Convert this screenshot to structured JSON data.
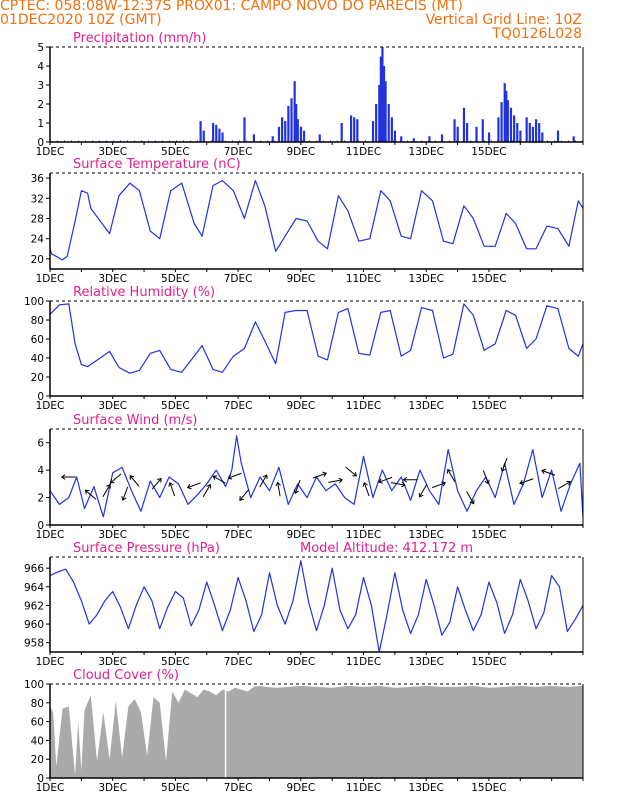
{
  "header": {
    "line1_left": "CPTEC:   058:08W-12:37S   PROX01: CAMPO NOVO DO PARECIS (MT)",
    "line2_left": "01DEC2020  10Z (GMT)",
    "line2_right": "Vertical Grid Line: 10Z",
    "line3_right": "TQ0126L028"
  },
  "colors": {
    "header": "#f07010",
    "title": "#e0208c",
    "series": "#2233dd",
    "cloud": "#aaaaaa"
  },
  "x_axis_labels": [
    "1DEC",
    "3DEC",
    "5DEC",
    "7DEC",
    "9DEC",
    "11DEC",
    "13DEC",
    "15DEC"
  ],
  "chart_data": [
    {
      "type": "bar",
      "title": "Precipitation (mm/h)",
      "ylim": [
        0,
        5
      ],
      "yticks": [
        0,
        1,
        2,
        3,
        4,
        5
      ],
      "x_unit": "days since 01DEC2020 10Z",
      "bars": [
        [
          5.8,
          1.1
        ],
        [
          5.9,
          0.6
        ],
        [
          6.2,
          1.0
        ],
        [
          6.3,
          0.9
        ],
        [
          6.4,
          0.7
        ],
        [
          6.5,
          0.5
        ],
        [
          7.2,
          1.3
        ],
        [
          7.5,
          0.4
        ],
        [
          8.1,
          0.3
        ],
        [
          8.3,
          0.8
        ],
        [
          8.4,
          1.3
        ],
        [
          8.5,
          1.1
        ],
        [
          8.6,
          1.9
        ],
        [
          8.7,
          2.3
        ],
        [
          8.8,
          3.2
        ],
        [
          8.85,
          2.0
        ],
        [
          8.9,
          1.2
        ],
        [
          9.0,
          0.8
        ],
        [
          9.1,
          0.6
        ],
        [
          9.6,
          0.4
        ],
        [
          10.3,
          1.0
        ],
        [
          10.6,
          1.4
        ],
        [
          10.7,
          1.3
        ],
        [
          10.8,
          1.2
        ],
        [
          11.3,
          1.1
        ],
        [
          11.4,
          2.0
        ],
        [
          11.5,
          3.0
        ],
        [
          11.55,
          4.5
        ],
        [
          11.6,
          5.0
        ],
        [
          11.65,
          4.0
        ],
        [
          11.7,
          3.2
        ],
        [
          11.8,
          2.0
        ],
        [
          11.9,
          1.3
        ],
        [
          12.0,
          0.6
        ],
        [
          12.2,
          0.3
        ],
        [
          12.6,
          0.2
        ],
        [
          13.1,
          0.3
        ],
        [
          13.5,
          0.4
        ],
        [
          13.9,
          1.2
        ],
        [
          14.0,
          0.8
        ],
        [
          14.2,
          1.8
        ],
        [
          14.3,
          1.0
        ],
        [
          14.6,
          0.8
        ],
        [
          14.8,
          1.2
        ],
        [
          15.0,
          0.5
        ],
        [
          15.3,
          1.3
        ],
        [
          15.4,
          2.1
        ],
        [
          15.5,
          3.1
        ],
        [
          15.55,
          2.7
        ],
        [
          15.6,
          2.2
        ],
        [
          15.7,
          1.8
        ],
        [
          15.8,
          1.4
        ],
        [
          15.9,
          1.0
        ],
        [
          16.0,
          0.6
        ],
        [
          16.2,
          1.3
        ],
        [
          16.3,
          1.0
        ],
        [
          16.4,
          0.8
        ],
        [
          16.5,
          1.2
        ],
        [
          16.6,
          1.0
        ],
        [
          16.7,
          0.5
        ],
        [
          17.2,
          0.6
        ],
        [
          17.7,
          0.3
        ]
      ]
    },
    {
      "type": "line",
      "title": "Surface Temperature (nC)",
      "ylim": [
        18,
        37
      ],
      "yticks": [
        20,
        24,
        28,
        32,
        36
      ],
      "x": [
        1.0,
        1.05,
        1.4,
        1.55,
        1.8,
        2.0,
        2.2,
        2.3,
        2.6,
        2.9,
        3.2,
        3.55,
        3.85,
        4.2,
        4.5,
        4.85,
        5.2,
        5.6,
        5.85,
        6.2,
        6.5,
        6.85,
        7.2,
        7.55,
        7.85,
        8.2,
        8.5,
        8.85,
        9.2,
        9.55,
        9.85,
        10.2,
        10.5,
        10.85,
        11.2,
        11.55,
        11.85,
        12.2,
        12.5,
        12.85,
        13.2,
        13.55,
        13.85,
        14.2,
        14.5,
        14.85,
        15.2,
        15.55,
        15.85,
        16.2,
        16.5,
        16.85,
        17.2,
        17.55,
        17.85,
        18.0
      ],
      "y": [
        22.0,
        21.0,
        19.8,
        20.5,
        27.5,
        33.5,
        33.0,
        30.0,
        27.5,
        25.0,
        32.5,
        35.0,
        33.5,
        25.5,
        24.0,
        33.5,
        35.0,
        27.0,
        24.5,
        34.5,
        35.5,
        33.5,
        28.0,
        35.5,
        30.5,
        21.5,
        24.5,
        28.0,
        27.5,
        23.5,
        22.0,
        32.5,
        29.5,
        23.5,
        24.0,
        33.5,
        31.5,
        24.5,
        24.0,
        33.5,
        31.5,
        23.5,
        23.0,
        30.5,
        28.0,
        22.5,
        22.5,
        29.0,
        27.0,
        22.0,
        22.0,
        26.5,
        26.0,
        22.5,
        31.5,
        30.0
      ]
    },
    {
      "type": "line",
      "title": "Relative Humidity (%)",
      "ylim": [
        0,
        100
      ],
      "yticks": [
        0,
        20,
        40,
        60,
        80,
        100
      ],
      "x": [
        1.0,
        1.3,
        1.6,
        1.8,
        2.0,
        2.2,
        2.6,
        2.9,
        3.2,
        3.55,
        3.85,
        4.2,
        4.5,
        4.85,
        5.2,
        5.55,
        5.85,
        6.2,
        6.5,
        6.85,
        7.2,
        7.55,
        7.85,
        8.2,
        8.5,
        8.85,
        9.2,
        9.55,
        9.85,
        10.2,
        10.5,
        10.85,
        11.2,
        11.55,
        11.85,
        12.2,
        12.5,
        12.85,
        13.2,
        13.55,
        13.85,
        14.2,
        14.5,
        14.85,
        15.2,
        15.55,
        15.85,
        16.2,
        16.5,
        16.85,
        17.2,
        17.55,
        17.85,
        18.0
      ],
      "y": [
        86,
        96,
        97,
        55,
        33,
        31,
        40,
        47,
        30,
        24,
        27,
        45,
        48,
        28,
        25,
        40,
        53,
        28,
        25,
        42,
        50,
        78,
        58,
        34,
        88,
        90,
        90,
        42,
        38,
        88,
        92,
        45,
        43,
        88,
        90,
        42,
        48,
        93,
        90,
        40,
        44,
        97,
        85,
        48,
        55,
        90,
        85,
        50,
        60,
        95,
        92,
        50,
        42,
        55
      ]
    },
    {
      "type": "line",
      "title": "Surface Wind (m/s)",
      "ylim": [
        0,
        7
      ],
      "yticks": [
        0,
        2,
        4,
        6
      ],
      "x": [
        1.0,
        1.3,
        1.6,
        1.85,
        2.1,
        2.4,
        2.7,
        3.0,
        3.3,
        3.6,
        3.9,
        4.2,
        4.5,
        4.8,
        5.1,
        5.4,
        5.7,
        6.0,
        6.3,
        6.6,
        6.8,
        6.95,
        7.1,
        7.4,
        7.7,
        8.0,
        8.3,
        8.6,
        8.9,
        9.2,
        9.5,
        9.8,
        10.1,
        10.4,
        10.7,
        11.0,
        11.3,
        11.6,
        11.9,
        12.2,
        12.5,
        12.8,
        13.1,
        13.4,
        13.7,
        14.0,
        14.3,
        14.6,
        14.9,
        15.2,
        15.5,
        15.8,
        16.1,
        16.4,
        16.7,
        17.0,
        17.3,
        17.6,
        17.9,
        18.0
      ],
      "y": [
        2.5,
        1.5,
        2.0,
        3.5,
        1.2,
        2.8,
        0.6,
        3.8,
        4.2,
        2.5,
        1.0,
        3.2,
        2.0,
        3.5,
        3.0,
        1.5,
        2.2,
        3.0,
        4.0,
        2.8,
        4.0,
        6.5,
        4.5,
        2.0,
        3.5,
        2.5,
        4.2,
        1.5,
        3.0,
        2.0,
        3.5,
        2.5,
        3.0,
        2.0,
        1.5,
        5.0,
        2.0,
        4.0,
        2.5,
        3.5,
        1.8,
        4.0,
        2.5,
        1.5,
        5.5,
        2.5,
        1.0,
        2.5,
        3.5,
        2.0,
        4.5,
        1.5,
        3.0,
        5.5,
        2.0,
        4.0,
        1.0,
        3.0,
        4.5,
        0.5
      ]
    },
    {
      "type": "line",
      "title": "Surface Pressure (hPa)",
      "annotation": "Model Altitude: 412.172  m",
      "ylim": [
        957,
        967.2
      ],
      "yticks": [
        958,
        960,
        962,
        964,
        966
      ],
      "x": [
        1.0,
        1.25,
        1.5,
        1.75,
        2.0,
        2.25,
        2.5,
        2.75,
        3.0,
        3.25,
        3.5,
        3.75,
        4.0,
        4.25,
        4.5,
        4.75,
        5.0,
        5.25,
        5.5,
        5.75,
        6.0,
        6.25,
        6.5,
        6.75,
        7.0,
        7.25,
        7.5,
        7.75,
        8.0,
        8.25,
        8.5,
        8.75,
        9.0,
        9.25,
        9.5,
        9.75,
        10.0,
        10.25,
        10.5,
        10.75,
        11.0,
        11.25,
        11.5,
        11.75,
        12.0,
        12.25,
        12.5,
        12.75,
        13.0,
        13.25,
        13.5,
        13.75,
        14.0,
        14.25,
        14.5,
        14.75,
        15.0,
        15.25,
        15.5,
        15.75,
        16.0,
        16.25,
        16.5,
        16.75,
        17.0,
        17.25,
        17.5,
        17.75,
        18.0
      ],
      "y": [
        965.2,
        965.6,
        965.9,
        964.5,
        962.5,
        960.0,
        961.0,
        962.5,
        963.5,
        961.8,
        959.5,
        962.0,
        964.0,
        962.5,
        959.5,
        961.8,
        963.5,
        962.8,
        959.8,
        961.5,
        964.5,
        962.0,
        959.3,
        961.5,
        965.0,
        962.5,
        959.2,
        961.0,
        965.5,
        962.0,
        960.0,
        962.5,
        966.8,
        962.3,
        959.3,
        962.0,
        966.0,
        961.5,
        959.5,
        961.0,
        965.0,
        962.0,
        957.0,
        961.0,
        965.5,
        961.5,
        959.0,
        961.0,
        964.8,
        962.0,
        958.8,
        960.2,
        964.0,
        961.5,
        959.3,
        961.0,
        964.5,
        962.3,
        959.0,
        961.0,
        964.8,
        962.5,
        959.5,
        961.2,
        965.2,
        964.0,
        959.2,
        960.5,
        962.0
      ]
    },
    {
      "type": "area",
      "title": "Cloud Cover (%)",
      "ylim": [
        0,
        100
      ],
      "yticks": [
        0,
        20,
        40,
        60,
        80,
        100
      ],
      "x": [
        1.0,
        1.1,
        1.2,
        1.4,
        1.6,
        1.8,
        1.9,
        2.0,
        2.1,
        2.3,
        2.5,
        2.7,
        2.9,
        3.1,
        3.3,
        3.5,
        3.7,
        3.9,
        4.1,
        4.3,
        4.5,
        4.7,
        4.9,
        5.1,
        5.3,
        5.5,
        5.7,
        5.9,
        6.1,
        6.3,
        6.5,
        6.7,
        6.9,
        7.1,
        7.3,
        7.5,
        7.7,
        7.9,
        8.2,
        8.6,
        9.0,
        9.5,
        10.0,
        10.5,
        11.0,
        11.5,
        12.0,
        12.5,
        13.0,
        13.5,
        14.0,
        14.5,
        15.0,
        15.5,
        16.0,
        16.5,
        17.0,
        17.5,
        18.0
      ],
      "y": [
        76,
        70,
        12,
        74,
        76,
        3,
        60,
        8,
        72,
        88,
        18,
        70,
        20,
        82,
        22,
        76,
        84,
        70,
        24,
        86,
        80,
        18,
        92,
        80,
        94,
        90,
        86,
        94,
        92,
        88,
        94,
        92,
        96,
        94,
        92,
        97,
        98,
        97,
        96,
        97,
        98,
        97,
        96,
        98,
        97,
        98,
        96,
        97,
        98,
        97,
        97,
        98,
        96,
        97,
        98,
        97,
        98,
        97,
        98
      ]
    }
  ],
  "wind_arrows": [
    {
      "x": 1.6,
      "y": 3.5,
      "angle": 180
    },
    {
      "x": 2.3,
      "y": 2.2,
      "angle": 140
    },
    {
      "x": 2.8,
      "y": 2.5,
      "angle": 60
    },
    {
      "x": 3.1,
      "y": 3.4,
      "angle": 220
    },
    {
      "x": 3.4,
      "y": 2.3,
      "angle": 250
    },
    {
      "x": 3.7,
      "y": 3.2,
      "angle": 130
    },
    {
      "x": 4.4,
      "y": 3.0,
      "angle": 50
    },
    {
      "x": 4.9,
      "y": 2.6,
      "angle": 110
    },
    {
      "x": 5.6,
      "y": 2.9,
      "angle": 200
    },
    {
      "x": 6.0,
      "y": 2.5,
      "angle": 60
    },
    {
      "x": 6.4,
      "y": 3.3,
      "angle": 150
    },
    {
      "x": 6.9,
      "y": 3.6,
      "angle": 200
    },
    {
      "x": 7.2,
      "y": 2.2,
      "angle": 230
    },
    {
      "x": 7.8,
      "y": 3.2,
      "angle": 60
    },
    {
      "x": 8.3,
      "y": 2.6,
      "angle": 100
    },
    {
      "x": 8.9,
      "y": 2.8,
      "angle": 250
    },
    {
      "x": 9.6,
      "y": 3.6,
      "angle": 20
    },
    {
      "x": 10.1,
      "y": 3.2,
      "angle": 10
    },
    {
      "x": 10.6,
      "y": 3.9,
      "angle": 320
    },
    {
      "x": 11.1,
      "y": 2.6,
      "angle": 110
    },
    {
      "x": 11.7,
      "y": 3.3,
      "angle": 200
    },
    {
      "x": 12.1,
      "y": 3.0,
      "angle": 350
    },
    {
      "x": 12.5,
      "y": 3.3,
      "angle": 180
    },
    {
      "x": 12.9,
      "y": 2.5,
      "angle": 240
    },
    {
      "x": 13.4,
      "y": 2.9,
      "angle": 20
    },
    {
      "x": 13.8,
      "y": 3.6,
      "angle": 120
    },
    {
      "x": 14.4,
      "y": 2.0,
      "angle": 300
    },
    {
      "x": 14.9,
      "y": 3.5,
      "angle": 290
    },
    {
      "x": 15.5,
      "y": 4.4,
      "angle": 250
    },
    {
      "x": 16.2,
      "y": 3.2,
      "angle": 200
    },
    {
      "x": 16.9,
      "y": 3.8,
      "angle": 160
    },
    {
      "x": 17.4,
      "y": 2.9,
      "angle": 30
    }
  ]
}
